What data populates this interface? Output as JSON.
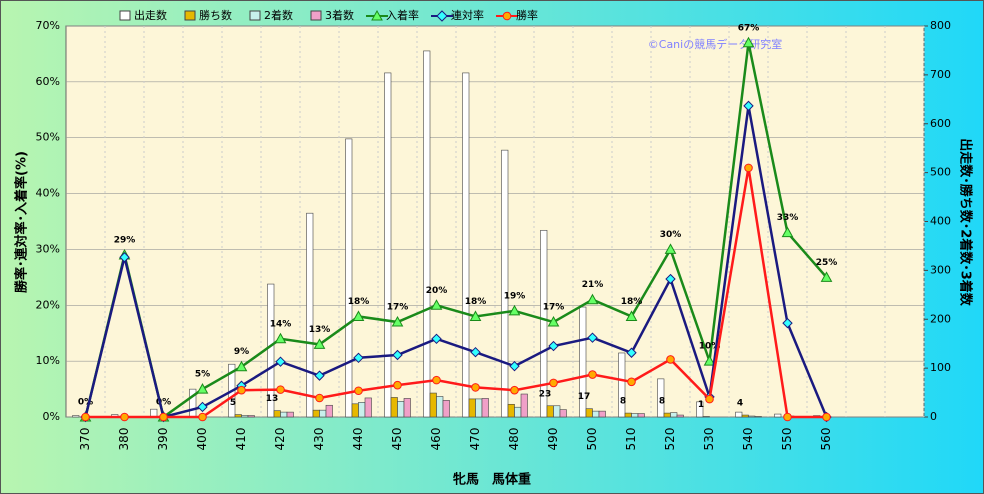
{
  "chart_data": {
    "type": "combo",
    "x_label": "牝馬　馬体重",
    "y_label": "勝率･連対率･入着率(%)",
    "y2_label": "出走数･勝ち数･2着数･3着数",
    "annotation": "©Caniの競馬データ研究室",
    "categories": [
      "370",
      "380",
      "390",
      "400",
      "410",
      "420",
      "430",
      "440",
      "450",
      "460",
      "470",
      "480",
      "490",
      "500",
      "510",
      "520",
      "530",
      "540",
      "550",
      "560",
      null,
      null
    ],
    "ylim": [
      0,
      70
    ],
    "yticks": [
      {
        "value": 0,
        "label": "0%"
      },
      {
        "value": 10,
        "label": "10%"
      },
      {
        "value": 20,
        "label": "20%"
      },
      {
        "value": 30,
        "label": "30%"
      },
      {
        "value": 40,
        "label": "40%"
      },
      {
        "value": 50,
        "label": "50%"
      },
      {
        "value": 60,
        "label": "60%"
      },
      {
        "value": 70,
        "label": "70%"
      }
    ],
    "y2lim": [
      0,
      800
    ],
    "y2ticks": [
      0,
      100,
      200,
      300,
      400,
      500,
      600,
      700,
      800
    ],
    "grid": true,
    "series": [
      {
        "name": "出走数",
        "kind": "bar",
        "axis": "y2",
        "color": "#ffffff",
        "values": [
          3,
          5,
          16,
          57,
          108,
          272,
          417,
          569,
          704,
          749,
          704,
          546,
          382,
          225,
          131,
          78,
          31,
          10,
          6,
          3,
          null,
          null
        ]
      },
      {
        "name": "勝ち数",
        "kind": "bar",
        "axis": "y2",
        "color": "#e6b800",
        "values": [
          0,
          0,
          0,
          0,
          5,
          13,
          14,
          27,
          40,
          49,
          37,
          26,
          23,
          17,
          8,
          8,
          1,
          4,
          0,
          0,
          null,
          null
        ],
        "value_labels": [
          null,
          null,
          null,
          null,
          "5",
          "13",
          null,
          null,
          null,
          null,
          null,
          null,
          "23",
          "17",
          "8",
          "8",
          "1",
          "4",
          null,
          null,
          null,
          null
        ]
      },
      {
        "name": "2着数",
        "kind": "bar",
        "axis": "y2",
        "color": "#c8f0ec",
        "values": [
          0,
          0,
          0,
          0,
          3,
          10,
          14,
          30,
          32,
          42,
          37,
          20,
          23,
          12,
          7,
          9,
          0,
          2,
          2,
          0,
          null,
          null
        ]
      },
      {
        "name": "3着数",
        "kind": "bar",
        "axis": "y2",
        "color": "#f0a0c8",
        "values": [
          0,
          0,
          0,
          0,
          3,
          10,
          24,
          39,
          38,
          34,
          38,
          47,
          15,
          12,
          7,
          4,
          0,
          1,
          0,
          0,
          null,
          null
        ]
      },
      {
        "name": "入着率",
        "kind": "line",
        "marker": "triangle",
        "color": "#1a8a1a",
        "values": [
          0,
          29,
          0,
          5,
          9,
          14,
          13,
          18,
          17,
          20,
          18,
          19,
          17,
          21,
          18,
          30,
          10,
          67,
          33,
          25,
          null,
          null
        ],
        "value_labels": [
          "0%",
          "29%",
          "0%",
          "5%",
          "9%",
          "14%",
          "13%",
          "18%",
          "17%",
          "20%",
          "18%",
          "19%",
          "17%",
          "21%",
          "18%",
          "30%",
          "10%",
          "67%",
          "33%",
          "25%",
          null,
          null
        ]
      },
      {
        "name": "連対率",
        "kind": "line",
        "marker": "diamond",
        "color": "#1a1a80",
        "values": [
          0,
          28.6,
          0,
          1.8,
          5.6,
          9.9,
          7.4,
          10.6,
          11.1,
          14,
          11.6,
          9.1,
          12.7,
          14.2,
          11.5,
          24.7,
          3.6,
          55.7,
          16.8,
          0,
          null,
          null
        ]
      },
      {
        "name": "勝率",
        "kind": "line",
        "marker": "circle",
        "color": "#ff1a1a",
        "values": [
          0,
          0,
          0,
          0,
          4.8,
          4.9,
          3.4,
          4.7,
          5.7,
          6.6,
          5.3,
          4.8,
          6.1,
          7.6,
          6.3,
          10.3,
          3.2,
          44.6,
          0,
          0,
          null,
          null
        ]
      }
    ]
  }
}
